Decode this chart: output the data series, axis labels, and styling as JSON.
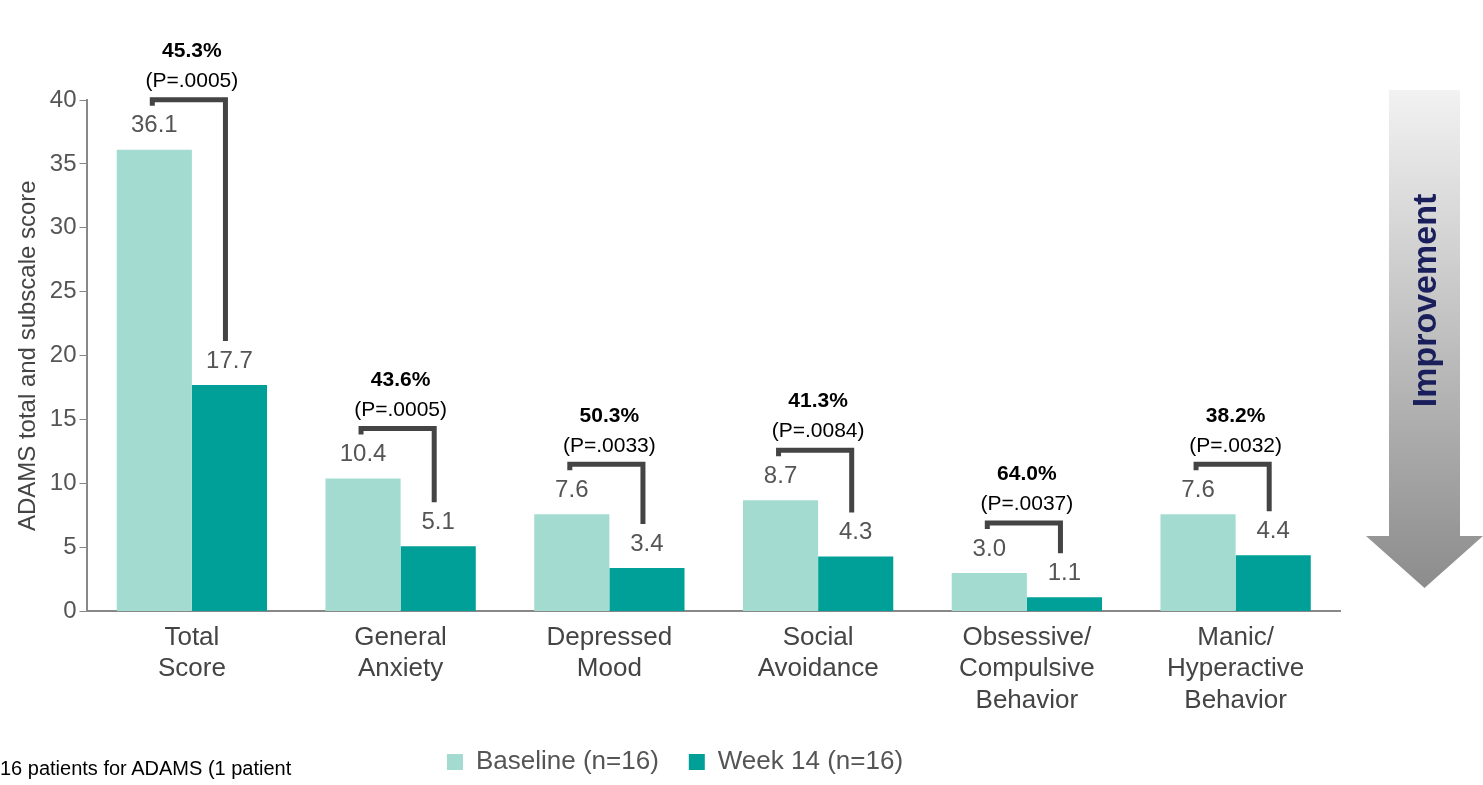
{
  "chart_data": {
    "type": "bar",
    "ylabel": "ADAMS total and subscale score",
    "categories": [
      "Total Score",
      "General Anxiety",
      "Depressed Mood",
      "Social Avoidance",
      "Obsessive/ Compulsive Behavior",
      "Manic/ Hyperactive Behavior"
    ],
    "series": [
      {
        "name": "Baseline (n=16)",
        "color": "#a3dbd1",
        "values": [
          36.1,
          10.4,
          7.6,
          8.7,
          3.0,
          7.6
        ],
        "value_labels": [
          "36.1",
          "10.4",
          "7.6",
          "8.7",
          "3.0",
          "7.6"
        ]
      },
      {
        "name": "Week 14 (n=16)",
        "color": "#00a099",
        "values": [
          17.7,
          5.1,
          3.4,
          4.3,
          1.1,
          4.4
        ],
        "value_labels": [
          "17.7",
          "5.1",
          "3.4",
          "4.3",
          "1.1",
          "4.4"
        ]
      }
    ],
    "ylim": [
      0,
      40
    ],
    "yticks": [
      0,
      5,
      10,
      15,
      20,
      25,
      30,
      35,
      40
    ],
    "grid": false,
    "legend": "bottom",
    "annotations": [
      "45.3%\n(P=.0005)",
      "43.6%\n(P=.0005)",
      "50.3%\n(P=.0033)",
      "41.3%\n(P=.0084)",
      "64.0%\n(P=.0037)",
      "38.2%\n(P=.0032)",
      "Improvement",
      "16 patients for ADAMS (1 patient"
    ]
  }
}
